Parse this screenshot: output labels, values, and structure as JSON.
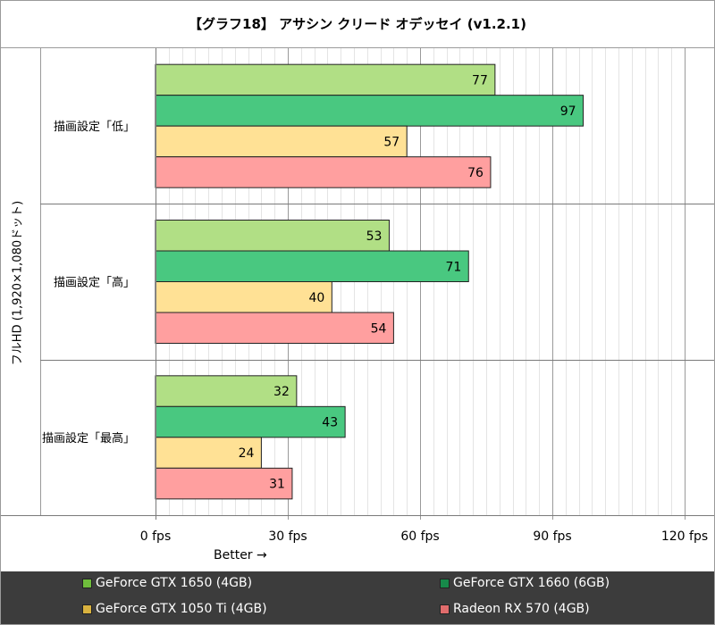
{
  "chart_data": {
    "type": "bar",
    "orientation": "horizontal",
    "title": "【グラフ18】 アサシン クリード オデッセイ (v1.2.1)",
    "ylabel": "フルHD (1,920×1,080ドット)",
    "xlabel": "Better →",
    "xlim": [
      0,
      120
    ],
    "xticks": [
      "0 fps",
      "30 fps",
      "60 fps",
      "90 fps",
      "120 fps"
    ],
    "grid": true,
    "legend_position": "bottom",
    "categories": [
      "描画設定「低」",
      "描画設定「高」",
      "描画設定「最高」"
    ],
    "series": [
      {
        "name": "GeForce GTX 1650 (4GB)",
        "color": "#b1df85",
        "values": [
          77,
          53,
          32
        ]
      },
      {
        "name": "GeForce GTX 1660 (6GB)",
        "color": "#49c880",
        "values": [
          97,
          71,
          43
        ]
      },
      {
        "name": "GeForce GTX 1050 Ti (4GB)",
        "color": "#ffe195",
        "values": [
          57,
          40,
          24
        ]
      },
      {
        "name": "Radeon RX 570 (4GB)",
        "color": "#ff9f9f",
        "values": [
          76,
          54,
          31
        ]
      }
    ]
  }
}
